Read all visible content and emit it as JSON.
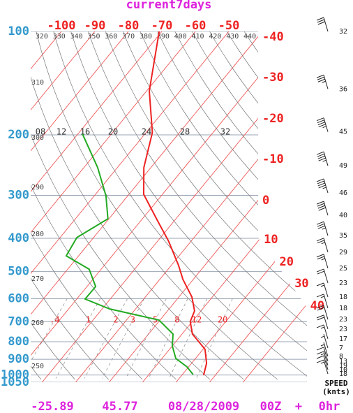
{
  "chart_data": {
    "type": "skewt",
    "title": "current7days",
    "log_scale": true,
    "ylim": [
      100,
      1050
    ],
    "yticks": [
      100,
      200,
      300,
      400,
      500,
      600,
      700,
      800,
      900,
      1000,
      1050
    ],
    "xticks": [
      -100,
      -90,
      -80,
      -70,
      -60,
      -50,
      -40,
      -30,
      -20,
      -10,
      0,
      10,
      20,
      30,
      40
    ],
    "isotherm_color": "#ee4444",
    "dry_adiabats": [
      250,
      260,
      270,
      280,
      290,
      300,
      310,
      320,
      330,
      340,
      350,
      360,
      370,
      380,
      390,
      400,
      410,
      420,
      430,
      440
    ],
    "dry_adiabat_color": "#777777",
    "mixing_ratios": [
      {
        "value": 0.4,
        "label": ".4"
      },
      1,
      2,
      3,
      5,
      8,
      12,
      20
    ],
    "upper_labels": [
      "08",
      "12",
      "16",
      "20",
      "24",
      "28",
      "32"
    ],
    "series": [
      {
        "color": "#ee2222",
        "pressure": [
          100,
          149,
          197,
          249,
          298,
          354,
          408,
          480,
          527,
          593,
          651,
          699,
          760,
          842,
          925,
          1002
        ],
        "values": [
          -70.8,
          -59.2,
          -48.1,
          -42.1,
          -35.6,
          -25.3,
          -16.7,
          -7.8,
          -3.1,
          3.9,
          8.1,
          9.4,
          13.1,
          20.6,
          24.5,
          26.5
        ]
      },
      {
        "color": "#22aa22",
        "pressure": [
          199,
          249,
          301,
          351,
          398,
          450,
          492,
          553,
          601,
          642,
          692,
          760,
          823,
          895,
          947,
          997
        ],
        "values": [
          -68.6,
          -55.9,
          -46.5,
          -40.3,
          -45,
          -43.7,
          -33.6,
          -27.4,
          -27.5,
          -17.8,
          -0.3,
          7.3,
          10,
          14.1,
          19.5,
          23.2
        ]
      }
    ],
    "wind": {
      "pressure": [
        100,
        147,
        196,
        246,
        295,
        343,
        393,
        439,
        489,
        540,
        593,
        639,
        689,
        735,
        785,
        835,
        883,
        912,
        938,
        965,
        993
      ],
      "speed": [
        32,
        36,
        45,
        49,
        46,
        40,
        35,
        29,
        25,
        23,
        18,
        18,
        23,
        23,
        17,
        7,
        8,
        13,
        19,
        10,
        18
      ]
    },
    "wind_label": [
      "SPEED",
      "(knts)"
    ],
    "footer": [
      "-25.89",
      "45.77",
      "08/28/2009",
      "00Z",
      "+",
      "0hr"
    ]
  }
}
